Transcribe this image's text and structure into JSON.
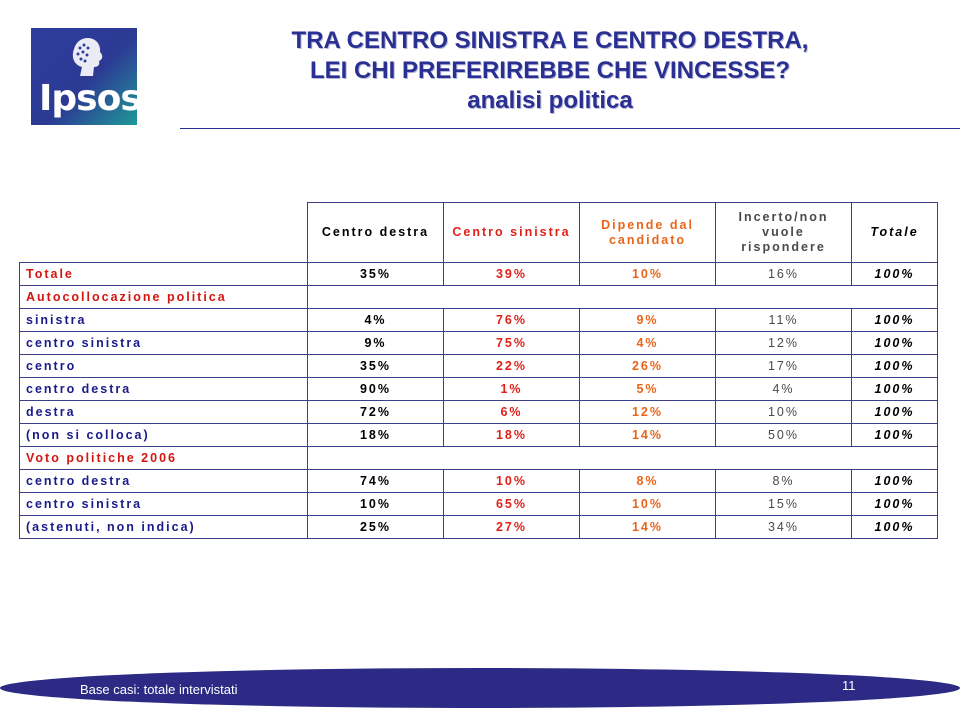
{
  "logo": {
    "text": "Ipsos"
  },
  "title": {
    "line1": "TRA CENTRO SINISTRA E CENTRO DESTRA,",
    "line2": "LEI CHI PREFERIREBBE CHE VINCESSE?",
    "line3": "analisi politica"
  },
  "table": {
    "headers": {
      "centro_destra": "Centro destra",
      "centro_sinistra": "Centro sinistra",
      "dipende": "Dipende dal candidato",
      "incerto": "Incerto/non vuole rispondere",
      "totale": "Totale"
    },
    "total_row": {
      "label": "Totale",
      "values": [
        "35%",
        "39%",
        "10%",
        "16%",
        "100%"
      ]
    },
    "section1": {
      "label": "Autocollocazione politica",
      "rows": [
        {
          "label": "sinistra",
          "values": [
            "4%",
            "76%",
            "9%",
            "11%",
            "100%"
          ]
        },
        {
          "label": "centro sinistra",
          "values": [
            "9%",
            "75%",
            "4%",
            "12%",
            "100%"
          ]
        },
        {
          "label": "centro",
          "values": [
            "35%",
            "22%",
            "26%",
            "17%",
            "100%"
          ]
        },
        {
          "label": "centro destra",
          "values": [
            "90%",
            "1%",
            "5%",
            "4%",
            "100%"
          ]
        },
        {
          "label": "destra",
          "values": [
            "72%",
            "6%",
            "12%",
            "10%",
            "100%"
          ]
        },
        {
          "label": "(non si colloca)",
          "values": [
            "18%",
            "18%",
            "14%",
            "50%",
            "100%"
          ]
        }
      ]
    },
    "section2": {
      "label": "Voto politiche 2006",
      "rows": [
        {
          "label": "centro destra",
          "values": [
            "74%",
            "10%",
            "8%",
            "8%",
            "100%"
          ]
        },
        {
          "label": "centro sinistra",
          "values": [
            "10%",
            "65%",
            "10%",
            "15%",
            "100%"
          ]
        },
        {
          "label": "(astenuti, non indica)",
          "values": [
            "25%",
            "27%",
            "14%",
            "34%",
            "100%"
          ]
        }
      ]
    }
  },
  "footer": {
    "note": "Base casi: totale intervistati",
    "page_number": "11"
  }
}
